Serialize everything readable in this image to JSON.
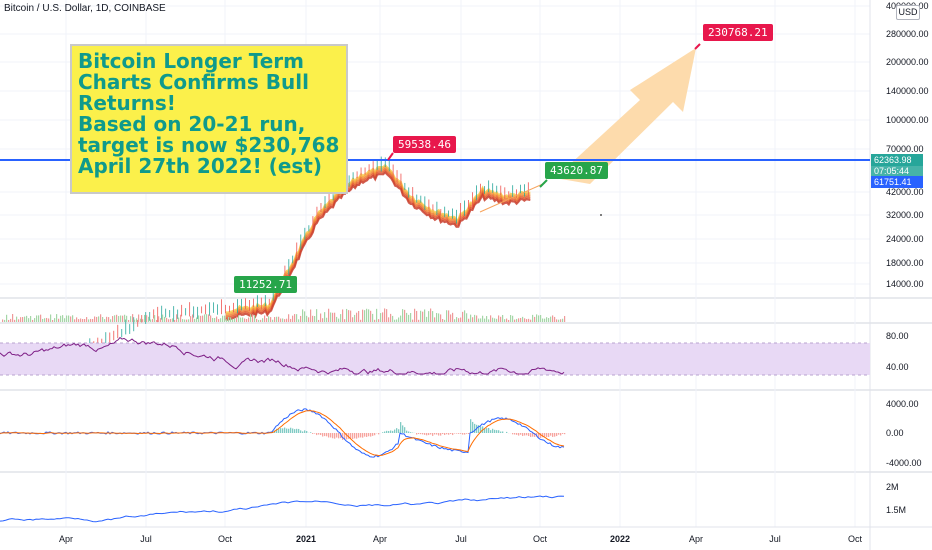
{
  "header": {
    "symbol_title": "Bitcoin / U.S. Dollar, 1D, COINBASE",
    "currency": "USD"
  },
  "note": {
    "lines": [
      "Bitcoin Longer Term",
      "Charts Confirms Bull",
      "Returns!",
      "Based on 20-21 run,",
      "target is now $230,768",
      "April 27th 2022!  (est)"
    ]
  },
  "tags": {
    "target": "230768.21",
    "peak": "59538.46",
    "current": "43620.87",
    "start": "11252.71"
  },
  "price_tags": {
    "last": "62363.98",
    "mid": "07:05:44",
    "line": "61751.41"
  },
  "colors": {
    "horizontal_line": "#2962ff",
    "rsi_line": "#7e1f86",
    "rsi_band": "#e8d9f5",
    "macd_line": "#2962ff",
    "signal_line": "#ff6d00",
    "hist_pos": "#26a69a",
    "hist_neg": "#ef5350",
    "arrow": "#fdd9a8",
    "note_bg": "#fbf04b",
    "note_text": "#0f9a8c"
  },
  "chart_data": [
    {
      "type": "line",
      "title": "Bitcoin / U.S. Dollar, 1D, COINBASE",
      "scale": "log",
      "y_ticks": [
        "400000.00",
        "280000.00",
        "200000.00",
        "140000.00",
        "100000.00",
        "70000.00",
        "42000.00",
        "32000.00",
        "24000.00",
        "18000.00",
        "14000.00"
      ],
      "x_ticks": [
        "Apr",
        "Jul",
        "Oct",
        "2021",
        "Apr",
        "Jul",
        "Oct",
        "2022",
        "Apr",
        "Jul",
        "Oct"
      ],
      "series": [
        {
          "x": [
            "2020-03",
            "2020-06",
            "2020-09",
            "2020-11",
            "2020-12",
            "2021-01",
            "2021-02",
            "2021-03",
            "2021-04",
            "2021-05",
            "2021-06",
            "2021-07",
            "2021-08",
            "2021-09",
            "2021-10"
          ],
          "values": [
            6000,
            9500,
            10500,
            11252.71,
            19000,
            33000,
            45000,
            55000,
            59538.46,
            42000,
            35000,
            32000,
            45000,
            42000,
            43620.87
          ]
        }
      ],
      "horizontal_line": 61751.41,
      "annotations": [
        {
          "label": "230768.21",
          "date": "2022-04-27"
        },
        {
          "label": "59538.46"
        },
        {
          "label": "43620.87"
        },
        {
          "label": "11252.71"
        }
      ]
    },
    {
      "type": "line",
      "title": "RSI",
      "y_ticks": [
        "80.00",
        "40.00"
      ],
      "band": [
        30,
        70
      ]
    },
    {
      "type": "line",
      "title": "MACD",
      "y_ticks": [
        "4000.00",
        "0.00",
        "-4000.00"
      ]
    },
    {
      "type": "line",
      "title": "Volume",
      "y_ticks": [
        "2M",
        "1.5M"
      ]
    }
  ]
}
